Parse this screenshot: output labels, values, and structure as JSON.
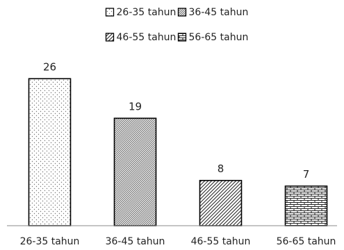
{
  "chart_data": {
    "type": "bar",
    "title": "",
    "xlabel": "",
    "ylabel": "",
    "categories": [
      "26-35 tahun",
      "36-45 tahun",
      "46-55 tahun",
      "56-65 tahun"
    ],
    "values": [
      26,
      19,
      8,
      7
    ],
    "data_labels": [
      "26",
      "19",
      "8",
      "7"
    ],
    "ylim": [
      0,
      28
    ],
    "grid": false,
    "legend": {
      "placement": "top-center",
      "entries": [
        "26-35 tahun",
        "36-45 tahun",
        "46-55 tahun",
        "56-65 tahun"
      ]
    },
    "series_colors": {
      "fill": "#ffffff",
      "stroke": "#000000"
    },
    "patterns": [
      "dotted",
      "diagonal-hatch",
      "diagonal-stripe",
      "brick"
    ]
  }
}
